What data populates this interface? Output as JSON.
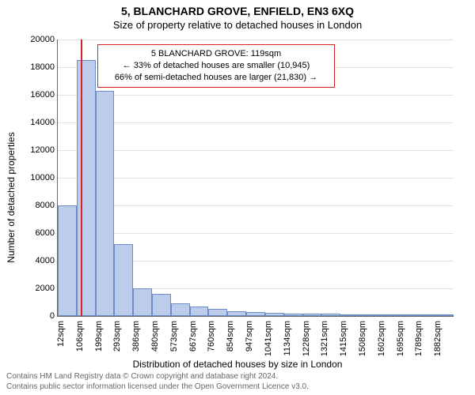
{
  "title": "5, BLANCHARD GROVE, ENFIELD, EN3 6XQ",
  "subtitle": "Size of property relative to detached houses in London",
  "chart": {
    "type": "histogram",
    "y_axis_label": "Number of detached properties",
    "x_axis_label": "Distribution of detached houses by size in London",
    "ylim": [
      0,
      20000
    ],
    "ytick_step": 2000,
    "x_tick_labels": [
      "12sqm",
      "106sqm",
      "199sqm",
      "293sqm",
      "386sqm",
      "480sqm",
      "573sqm",
      "667sqm",
      "760sqm",
      "854sqm",
      "947sqm",
      "1041sqm",
      "1134sqm",
      "1228sqm",
      "1321sqm",
      "1415sqm",
      "1508sqm",
      "1602sqm",
      "1695sqm",
      "1789sqm",
      "1882sqm"
    ],
    "bar_values": [
      8000,
      18500,
      16300,
      5200,
      2000,
      1600,
      900,
      700,
      500,
      350,
      300,
      250,
      200,
      180,
      150,
      120,
      100,
      90,
      80,
      70,
      60
    ],
    "bar_fill": "#bcccea",
    "bar_stroke": "#6b8cc4",
    "background_color": "#ffffff",
    "grid_color": "#e0e0e0",
    "axis_color": "#666666",
    "marker_color": "#d92222",
    "marker_bin_index": 1,
    "marker_offset_in_bin": 0.2,
    "title_fontsize": 14,
    "subtitle_fontsize": 13,
    "axis_label_fontsize": 12,
    "tick_fontsize": 11,
    "annotation_fontsize": 11
  },
  "annotation": {
    "lines": [
      "5 BLANCHARD GROVE: 119sqm",
      "← 33% of detached houses are smaller (10,945)",
      "66% of semi-detached houses are larger (21,830) →"
    ]
  },
  "attribution": {
    "line1": "Contains HM Land Registry data © Crown copyright and database right 2024.",
    "line2": "Contains public sector information licensed under the Open Government Licence v3.0."
  }
}
